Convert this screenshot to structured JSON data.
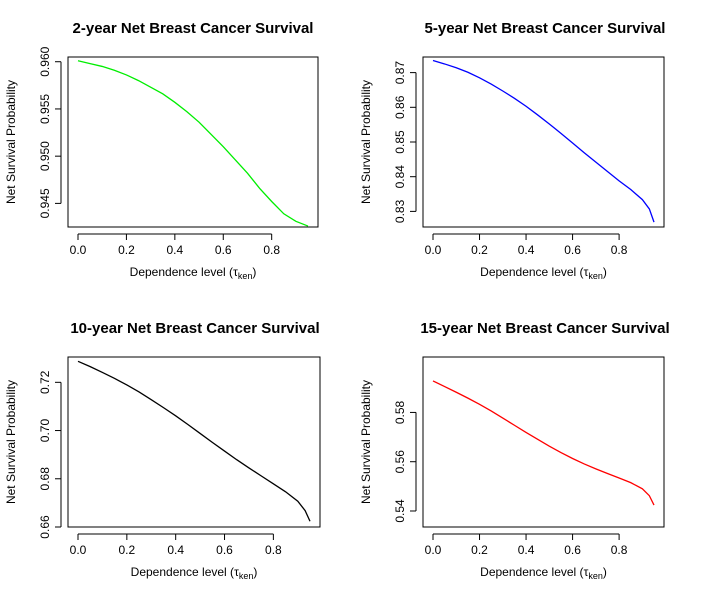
{
  "chart_data": [
    {
      "type": "line",
      "title": "2-year Net Breast Cancer Survival",
      "xlabel": "Dependence level (",
      "xlabel_symbol": "τ",
      "xlabel_subscript": "ken",
      "xlabel_close": ")",
      "ylabel": "Net Survival Probability",
      "xlim": [
        0.0,
        0.95
      ],
      "ylim": [
        0.9425,
        0.9605
      ],
      "xticks": [
        0.0,
        0.2,
        0.4,
        0.6,
        0.8
      ],
      "xtick_labels": [
        "0.0",
        "0.2",
        "0.4",
        "0.6",
        "0.8"
      ],
      "yticks": [
        0.945,
        0.95,
        0.955,
        0.96
      ],
      "ytick_labels": [
        "0.945",
        "0.950",
        "0.955",
        "0.960"
      ],
      "grid": false,
      "series": [
        {
          "color": "#00ee00",
          "x": [
            0.0,
            0.05,
            0.1,
            0.15,
            0.2,
            0.25,
            0.3,
            0.35,
            0.4,
            0.45,
            0.5,
            0.55,
            0.6,
            0.65,
            0.7,
            0.75,
            0.8,
            0.85,
            0.9,
            0.95
          ],
          "y": [
            0.9601,
            0.9598,
            0.9595,
            0.9591,
            0.9586,
            0.958,
            0.9573,
            0.9566,
            0.9557,
            0.9547,
            0.9536,
            0.9523,
            0.951,
            0.9496,
            0.9482,
            0.9466,
            0.9452,
            0.9439,
            0.9431,
            0.9426
          ]
        }
      ]
    },
    {
      "type": "line",
      "title": "5-year Net Breast Cancer Survival",
      "xlabel": "Dependence level (",
      "xlabel_symbol": "τ",
      "xlabel_subscript": "ken",
      "xlabel_close": ")",
      "ylabel": "Net Survival Probability",
      "xlim": [
        0.0,
        0.95
      ],
      "ylim": [
        0.8255,
        0.8745
      ],
      "xticks": [
        0.0,
        0.2,
        0.4,
        0.6,
        0.8
      ],
      "xtick_labels": [
        "0.0",
        "0.2",
        "0.4",
        "0.6",
        "0.8"
      ],
      "yticks": [
        0.83,
        0.84,
        0.85,
        0.86,
        0.87
      ],
      "ytick_labels": [
        "0.83",
        "0.84",
        "0.85",
        "0.86",
        "0.87"
      ],
      "grid": false,
      "series": [
        {
          "color": "#0000ff",
          "x": [
            0.0,
            0.05,
            0.1,
            0.15,
            0.2,
            0.25,
            0.3,
            0.35,
            0.4,
            0.45,
            0.5,
            0.55,
            0.6,
            0.65,
            0.7,
            0.75,
            0.8,
            0.85,
            0.9,
            0.93,
            0.95
          ],
          "y": [
            0.8735,
            0.8725,
            0.8714,
            0.8701,
            0.8685,
            0.8667,
            0.8647,
            0.8626,
            0.8603,
            0.8578,
            0.8552,
            0.8525,
            0.8497,
            0.8469,
            0.8442,
            0.8415,
            0.8388,
            0.8363,
            0.8334,
            0.8307,
            0.8269
          ]
        }
      ]
    },
    {
      "type": "line",
      "title": "10-year Net Breast Cancer Survival",
      "xlabel": "Dependence level (",
      "xlabel_symbol": "τ",
      "xlabel_subscript": "ken",
      "xlabel_close": ")",
      "ylabel": "Net Survival Probability",
      "xlim": [
        0.0,
        0.95
      ],
      "ylim": [
        0.66,
        0.7305
      ],
      "xticks": [
        0.0,
        0.2,
        0.4,
        0.6,
        0.8
      ],
      "xtick_labels": [
        "0.0",
        "0.2",
        "0.4",
        "0.6",
        "0.8"
      ],
      "yticks": [
        0.66,
        0.68,
        0.7,
        0.72
      ],
      "ytick_labels": [
        "0.66",
        "0.68",
        "0.70",
        "0.72"
      ],
      "grid": false,
      "series": [
        {
          "color": "#000000",
          "x": [
            0.0,
            0.05,
            0.1,
            0.15,
            0.2,
            0.25,
            0.3,
            0.35,
            0.4,
            0.45,
            0.5,
            0.55,
            0.6,
            0.65,
            0.7,
            0.75,
            0.8,
            0.85,
            0.9,
            0.93,
            0.95
          ],
          "y": [
            0.7287,
            0.7265,
            0.7241,
            0.7216,
            0.7189,
            0.716,
            0.7128,
            0.7095,
            0.7061,
            0.7025,
            0.6988,
            0.6951,
            0.6915,
            0.6879,
            0.6845,
            0.6812,
            0.6779,
            0.6746,
            0.6707,
            0.6668,
            0.6624
          ]
        }
      ]
    },
    {
      "type": "line",
      "title": "15-year Net Breast Cancer Survival",
      "xlabel": "Dependence level (",
      "xlabel_symbol": "τ",
      "xlabel_subscript": "ken",
      "xlabel_close": ")",
      "ylabel": "Net Survival Probability",
      "xlim": [
        0.0,
        0.95
      ],
      "ylim": [
        0.5335,
        0.6025
      ],
      "xticks": [
        0.0,
        0.2,
        0.4,
        0.6,
        0.8
      ],
      "xtick_labels": [
        "0.0",
        "0.2",
        "0.4",
        "0.6",
        "0.8"
      ],
      "yticks": [
        0.54,
        0.56,
        0.58
      ],
      "ytick_labels": [
        "0.54",
        "0.56",
        "0.58"
      ],
      "grid": false,
      "series": [
        {
          "color": "#ff0000",
          "x": [
            0.0,
            0.05,
            0.1,
            0.15,
            0.2,
            0.25,
            0.3,
            0.35,
            0.4,
            0.45,
            0.5,
            0.55,
            0.6,
            0.65,
            0.7,
            0.75,
            0.8,
            0.85,
            0.9,
            0.93,
            0.95
          ],
          "y": [
            0.5928,
            0.5905,
            0.5882,
            0.5858,
            0.5833,
            0.5806,
            0.5777,
            0.5748,
            0.5719,
            0.5691,
            0.5663,
            0.5637,
            0.5613,
            0.5591,
            0.5571,
            0.5552,
            0.5534,
            0.5515,
            0.549,
            0.5462,
            0.5424
          ]
        }
      ]
    }
  ]
}
